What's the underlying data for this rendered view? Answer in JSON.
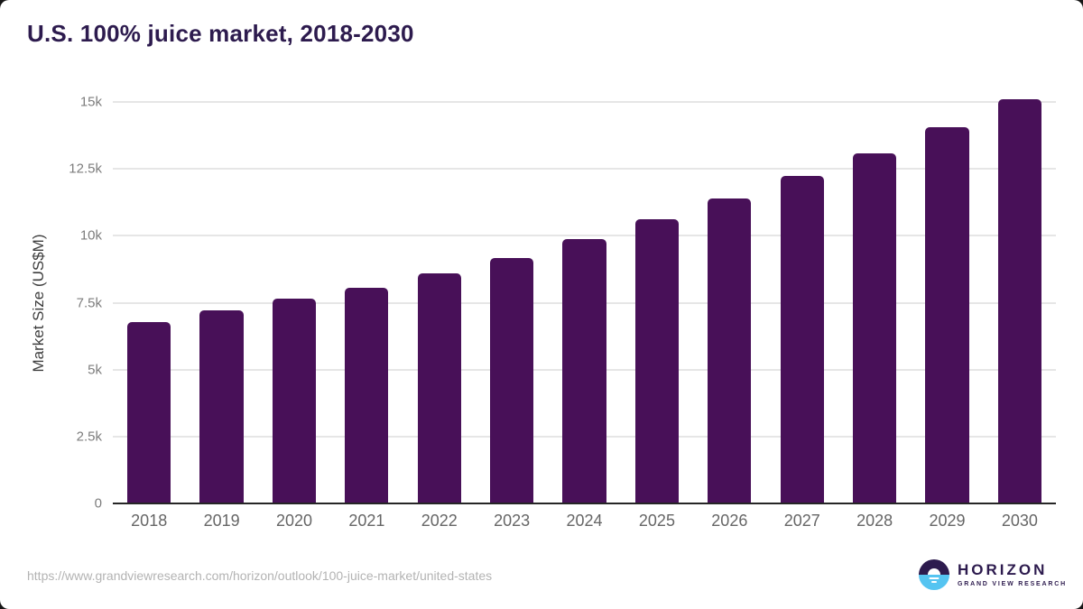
{
  "page": {
    "background": "#161616",
    "card_color": "#ffffff"
  },
  "chart_data": {
    "type": "bar",
    "title": "U.S. 100% juice market, 2018-2030",
    "xlabel": "",
    "ylabel": "Market Size (US$M)",
    "categories": [
      "2018",
      "2019",
      "2020",
      "2021",
      "2022",
      "2023",
      "2024",
      "2025",
      "2026",
      "2027",
      "2028",
      "2029",
      "2030"
    ],
    "values": [
      6780,
      7220,
      7660,
      8070,
      8610,
      9180,
      9880,
      10620,
      11410,
      12240,
      13090,
      14050,
      15110
    ],
    "ylim": [
      0,
      15000
    ],
    "yticks": {
      "values": [
        0,
        2500,
        5000,
        7500,
        10000,
        12500,
        15000
      ],
      "labels": [
        "0",
        "2.5k",
        "5k",
        "7.5k",
        "10k",
        "12.5k",
        "15k"
      ]
    },
    "grid": "horizontal",
    "legend": "none",
    "bar_color": "#481058",
    "title_color": "#2d1b4e",
    "gridline_color": "#e6e6e6",
    "axis_line_color": "#262626",
    "ytick_color": "#7d7d7d",
    "xtick_color": "#666666"
  },
  "footer": {
    "source_url": "https://www.grandviewresearch.com/horizon/outlook/100-juice-market/united-states",
    "logo": {
      "title": "HORIZON",
      "subtitle": "GRAND VIEW RESEARCH",
      "dark_color": "#2d1b4e",
      "blue_color": "#55c4f1"
    }
  }
}
